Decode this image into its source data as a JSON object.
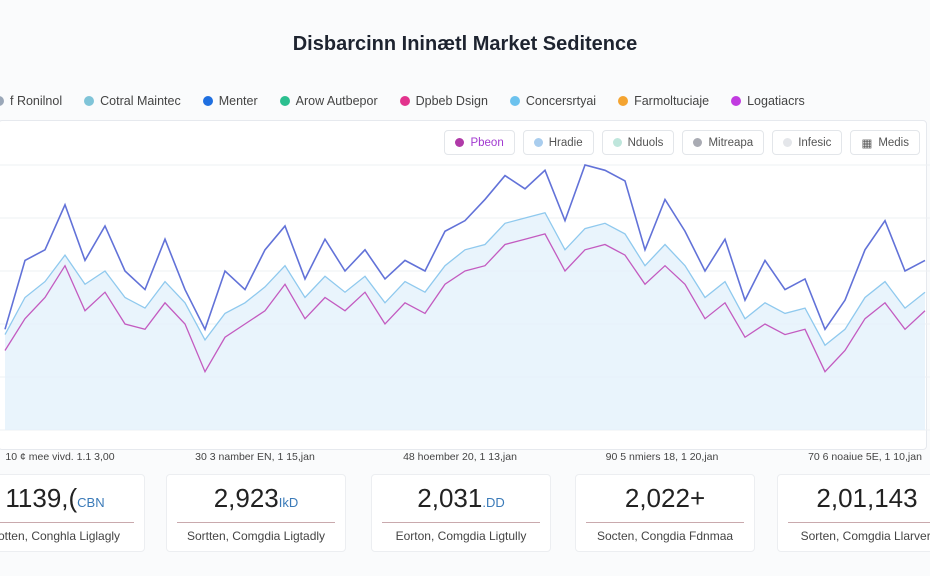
{
  "chart_data": {
    "type": "line",
    "title": "Disbarcinn Ininætl Market Seditence",
    "ylim": [
      0,
      100
    ],
    "grid": true,
    "legend": [
      {
        "label": "f Ronilnol",
        "color": "#9aa7b8"
      },
      {
        "label": "Cotral Maintec",
        "color": "#7fc4d8"
      },
      {
        "label": "Menter",
        "color": "#1f6fe0"
      },
      {
        "label": "Arow Autbepor",
        "color": "#2bbf8f"
      },
      {
        "label": "Dpbeb Dsign",
        "color": "#e2338d"
      },
      {
        "label": "Concersrtyai",
        "color": "#6cc2ee"
      },
      {
        "label": "Farmoltuciaje",
        "color": "#f4a431"
      },
      {
        "label": "Logatiacrs",
        "color": "#c13be0"
      }
    ],
    "x_labels": [
      "10 ¢ mee vivd. 1.1 3,00",
      "30 3 namber EN, 1 15,jan",
      "48 hoember 20, 1 13,jan",
      "90 5 nmiers 18, 1 20,jan",
      "70 6 noaiue 5E, 1 10,jan"
    ],
    "series": [
      {
        "name": "Menter",
        "color": "#6272d8",
        "values": [
          38,
          64,
          68,
          85,
          64,
          77,
          60,
          53,
          72,
          53,
          38,
          60,
          53,
          68,
          77,
          57,
          72,
          60,
          68,
          57,
          64,
          60,
          75,
          79,
          87,
          96,
          91,
          98,
          79,
          100,
          98,
          94,
          68,
          87,
          75,
          60,
          72,
          49,
          64,
          53,
          57,
          38,
          49,
          68,
          79,
          60,
          64
        ]
      },
      {
        "name": "Dpbeb Dsign",
        "color": "#c35bc0",
        "values": [
          30,
          42,
          50,
          62,
          45,
          52,
          40,
          38,
          48,
          40,
          22,
          35,
          40,
          45,
          55,
          42,
          50,
          45,
          52,
          40,
          48,
          44,
          55,
          60,
          62,
          70,
          72,
          74,
          60,
          68,
          70,
          66,
          55,
          62,
          55,
          42,
          48,
          35,
          40,
          36,
          38,
          22,
          30,
          42,
          48,
          38,
          45
        ]
      },
      {
        "name": "Concersrtyai",
        "color": "#8fc9ee",
        "values": [
          36,
          50,
          56,
          66,
          55,
          60,
          50,
          46,
          56,
          48,
          34,
          44,
          48,
          54,
          62,
          50,
          58,
          52,
          58,
          48,
          56,
          52,
          62,
          68,
          70,
          78,
          80,
          82,
          68,
          76,
          78,
          74,
          62,
          70,
          62,
          50,
          56,
          42,
          48,
          44,
          46,
          32,
          38,
          50,
          56,
          46,
          52
        ]
      }
    ]
  },
  "filters": [
    {
      "label": "Pbeon",
      "color": "#b03aa8",
      "active": true
    },
    {
      "label": "Hradie",
      "color": "#a9cdee"
    },
    {
      "label": "Nduols",
      "color": "#bfe6dc"
    },
    {
      "label": "Mitreapa",
      "color": "#a9abb3"
    },
    {
      "label": "Infesic",
      "color": "#e4e6ea"
    },
    {
      "label": "Medis",
      "icon": "chart-icon"
    }
  ],
  "cards": [
    {
      "value": "1139,(",
      "unit": "CBN",
      "sub": "Sotten, Conghla Liglagly"
    },
    {
      "value": "2,923",
      "unit": "IkD",
      "sub": "Sortten, Comgdia Ligtadly"
    },
    {
      "value": "2,031",
      "unit": ".DD",
      "sub": "Eorton, Comgdia Ligtully"
    },
    {
      "value": "2,022+",
      "unit": "",
      "sub": "Socten, Congdia Fdnmaa"
    },
    {
      "value": "2,01,143",
      "unit": "",
      "sub": "Sorten, Comgdia Llarverl"
    }
  ]
}
